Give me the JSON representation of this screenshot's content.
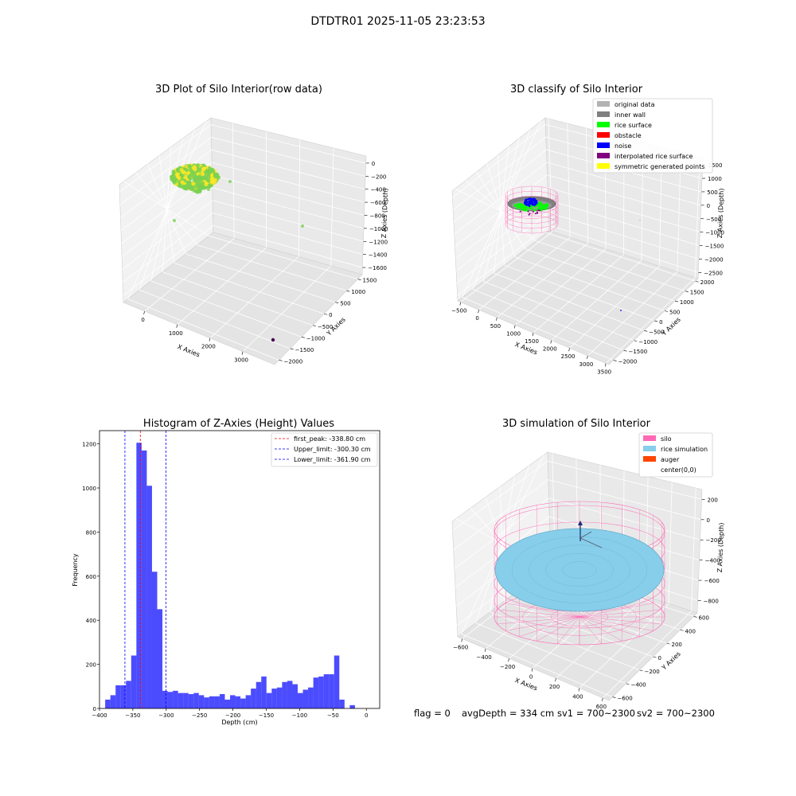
{
  "figure": {
    "suptitle": "DTDTR01 2025-11-05 23:23:53",
    "footer": {
      "flag": "flag = 0",
      "avg": "avgDepth = 334 cm",
      "sv1": "sv1 = 700~2300",
      "sv2": "sv2 = 700~2300"
    }
  },
  "chart_data": [
    {
      "type": "scatter",
      "title": "3D Plot of Silo Interior(row data)",
      "xlabel": "X Axies",
      "ylabel": "Y Axies",
      "zlabel": "Z Axies (Depth)",
      "xticks": [
        "0",
        "1000",
        "2000",
        "3000"
      ],
      "yticks": [
        "−2000",
        "−1500",
        "−1000",
        "−500",
        "0",
        "500",
        "1000",
        "1500"
      ],
      "zticks": [
        "0",
        "−200",
        "−400",
        "−600",
        "−800",
        "−1000",
        "−1200",
        "−1400",
        "−1600"
      ],
      "colors": {
        "low": "#440154",
        "mid": "#7ad151",
        "high": "#fde725"
      }
    },
    {
      "type": "scatter",
      "title": "3D classify of Silo Interior",
      "xlabel": "X Axies",
      "ylabel": "Y Axies",
      "zlabel": "Z Axies (Depth)",
      "xticks": [
        "−500",
        "0",
        "500",
        "1000",
        "1500",
        "2000",
        "2500",
        "3000",
        "3500"
      ],
      "yticks": [
        "−2000",
        "−1500",
        "−1000",
        "−500",
        "0",
        "500",
        "1000",
        "1500",
        "2000"
      ],
      "zticks": [
        "1500",
        "1000",
        "500",
        "0",
        "−500",
        "−1000",
        "−1500",
        "−2000",
        "−2500"
      ],
      "legend": [
        {
          "label": "original data",
          "color": "#b3b3b3"
        },
        {
          "label": "inner wall",
          "color": "#808080"
        },
        {
          "label": "rice surface",
          "color": "#00ff00"
        },
        {
          "label": "obstacle",
          "color": "#ff0000"
        },
        {
          "label": "noise",
          "color": "#0000ff"
        },
        {
          "label": "interpolated rice surface",
          "color": "#800080"
        },
        {
          "label": "symmetric generated points",
          "color": "#ffff00"
        }
      ]
    },
    {
      "type": "bar",
      "title": "Histogram of Z-Axies (Height) Values",
      "xlabel": "Depth (cm)",
      "ylabel": "Frequency",
      "xlim": [
        -400,
        20
      ],
      "ylim": [
        0,
        1260
      ],
      "xticks": [
        -400,
        -350,
        -300,
        -250,
        -200,
        -150,
        -100,
        -50,
        0
      ],
      "yticks": [
        0,
        200,
        400,
        600,
        800,
        1000,
        1200
      ],
      "bin_width": 7.8,
      "bin_start": -391.5,
      "values": [
        40,
        60,
        105,
        105,
        125,
        240,
        1205,
        1170,
        1010,
        620,
        450,
        80,
        75,
        80,
        70,
        70,
        65,
        70,
        60,
        50,
        55,
        55,
        65,
        40,
        60,
        55,
        45,
        60,
        90,
        120,
        145,
        70,
        90,
        95,
        120,
        125,
        110,
        70,
        85,
        95,
        140,
        145,
        155,
        155,
        240,
        40,
        0,
        15
      ],
      "bar_color": "#0000ff",
      "lines": [
        {
          "label": "first_peak: -338.80 cm",
          "value": -338.8,
          "color": "#ff0000"
        },
        {
          "label": "Upper_limit: -300.30 cm",
          "value": -300.3,
          "color": "#0000ff"
        },
        {
          "label": "Lower_limit: -361.90 cm",
          "value": -361.9,
          "color": "#0000ff"
        }
      ]
    },
    {
      "type": "scatter",
      "title": "3D simulation of Silo Interior",
      "xlabel": "X Axies",
      "ylabel": "Y Axies",
      "zlabel": "Z Axies (Depth)",
      "xticks": [
        "−600",
        "−400",
        "−200",
        "0",
        "200",
        "400",
        "600"
      ],
      "yticks": [
        "−600",
        "−400",
        "−200",
        "0",
        "200",
        "400",
        "600"
      ],
      "zticks": [
        "200",
        "0",
        "−200",
        "−400",
        "−600",
        "−800"
      ],
      "legend": [
        {
          "label": "silo",
          "color": "#ff69b4"
        },
        {
          "label": "rice simulation",
          "color": "#87ceeb"
        },
        {
          "label": "auger",
          "color": "#ff4500"
        },
        {
          "label": "center(0,0)",
          "color": "#ffffff"
        }
      ]
    }
  ]
}
